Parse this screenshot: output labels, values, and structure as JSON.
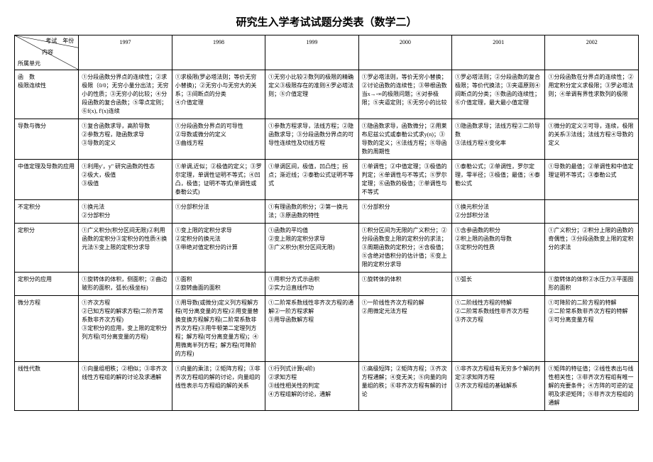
{
  "title": "研究生入学考试试题分类表（数学二）",
  "header": {
    "diag_top": "考试　年份",
    "diag_mid": "内容",
    "diag_bot": "所属单元",
    "years": [
      "1997",
      "1998",
      "1999",
      "2000",
      "2001",
      "2002"
    ]
  },
  "rows": [
    {
      "label": "函　数\n极限连续性",
      "cells": [
        "①分段函数分界点的连续性；②求极限（0/0；无穷小量分出法；无穷小的性质；③无穷小的比较；④分段函数的复合函数；⑤零点定则；⑥f(x), f'(x)连续",
        "①求极限(罗必塔法则；等价无穷小替换)；②无穷小与无穷大的关系；③间断点的分类\n④介值定理",
        "①无穷小比较②数列的极限的精确定义③极限存在的准则④罗必塔法则；⑤介值定理",
        "①罗必塔法则，等价无穷小替换；②讨论函数的连续性；③带根函数当x→-∞的极限问题；④对参极限；⑤夹逼定则；⑥无穷小的比较",
        "①罗必塔法则；②分段函数的复合极限；等价代换法；③夹逼原则④间断点的分类；⑤数函的连续性；⑥介值定理，最大最小值定理",
        "①分段函数在分界点的连续性；②用定积分定义求极限；③罗必塔法则；④单调有界性求数列的极限"
      ]
    },
    {
      "label": "导数与微分",
      "cells": [
        "①复合函数求导，高阶导数\n②参数方程，隐函数求导\n③导数的定义",
        "①分段函数分界点的可导性\n②导数或微分的定义\n③曲线方程",
        "①参数方程求导，法线方程；②隐函数求导；③分段函数分界点的可导性连续性及切线方程",
        "①隐函数求导，函数微分；②用莱布尼兹公式或泰勒公式求y(n)；③导数的定义；④法线方程；⑤导函数的周期性",
        "①隐函数求导；法线方程②二阶导数\n③法线方程④变化率",
        "①微分的定义②可导，连续，极限的关系③法线；法线方程④导数的定义"
      ]
    },
    {
      "label": "中值定理及导数的应用",
      "cells": [
        "①利用y'，y\" 研究函数的性态\n②极大，极值\n③极值",
        "①单调,近似；②极值的定义；③罗尔定理，单调性证明不等式；④凹凸，极值；证明不等式(单调性或泰勒公式)",
        "①单调区间，极值，凹凸性；拐点；渐近线；②泰勒公式证明不等式",
        "①单调性；②中值定理；③极值的判定；④单调性与不等式；⑤罗尔定理；⑥函数的极值；⑦单调性与不等式",
        "①泰勒公式；②单调性，罗尔定理，零半径；③极值；最值；④泰勒公式",
        "①导数的最值；②单调性和中值定理证明不等式；③泰勒公式"
      ]
    },
    {
      "label": "不定积分",
      "cells": [
        "①换元法\n②分部积分",
        "①分部积分法",
        "①有理函数的积分；②第一换元法；③原函数的特性",
        "①分部积分",
        "①换元积分法\n②分部积分法",
        ""
      ]
    },
    {
      "label": "定积分",
      "cells": [
        "①广义积分(积分区间无限)②利用函数的定积分③定积分的性质④换元法⑤变上限的定积分求导",
        "①变上限的定积分求导\n②定积分的换元法\n③带绝对值定积分的计算",
        "①函数的平均值\n②变上限的定积分求导\n③广义积分(积分区间无限)",
        "①积分区间为无限的广义积分；②分段函数变上限的定积分的求法；③周期函数的定积分；④含极值；⑤含绝对值积分的估计值；⑥变上限的定积分求导",
        "①含参函数的积分\n②积上限的函数的导数\n③定积分的性质",
        "①广义积分；②积分上限的函数的奇偶性；③分段函数变上限的定积分的求法"
      ]
    },
    {
      "label": "定积分的应用",
      "cells": [
        "①旋转体的体积，侧面积；②曲边玻形的面积，弧长(极坐标)",
        "①面积\n②旋转曲面的面积",
        "①用积分方式示函积\n②实力沿直线作功",
        "①旋转体的体积",
        "①弧长",
        "①旋转体的体积②水压力③平面图形的面积"
      ]
    },
    {
      "label": "微分方程",
      "cells": [
        "①齐次方程\n②已知方程的解求方程(二阶齐常系数非齐次方程)\n③定积分的应用，变上限的定积分列方程(可分离变量的方程)",
        "①用导数(或微分)定义列方程解方程(可分离变量的方程)②用变量替换变换方程解方程(二阶常系数非齐次方程)③用牛顿第二定理列方程；解方程(可分离变量方程)；④用微离半列方程；解方程(可降阶的方程)",
        "①二阶常系数线性非齐次方程的通解②一阶方程求解\n③用导函数解方程",
        "①一阶线性齐次方程的解\n②用微定元法方程",
        "①二阶线性方程的特解\n②二阶常系数线性非齐次方程\n③齐次方程",
        "①可降阶的二阶方程的特解\n②二阶常系数非齐次方程的特解\n③可分离变量方程"
      ]
    },
    {
      "label": "线性代数",
      "cells": [
        "①向量组相秩；②相似；③非齐次线性方程组的解的讨论及求通解",
        "①向量的乘法；②矩阵方程；③非齐次方程组的解的讨论，向量组的线性表示与方程组的解的关系",
        "①行列式计算(4阶)\n②求知方程\n③线性相关性的判定\n④方程组解的讨论，通解",
        "①高级短阵；②矩阵方程；③齐次方程通解；④变无关；⑤向量的向量组的秩；⑥非齐次方程有解的讨论",
        "①非齐次方程组有无穷多个解的判定②求知阵方程\n③齐次方程组的基础解系",
        "①矩阵的特征值；②线性表出与线性相关性；③非齐次方程组有唯一解的充要条件；④方阵的可逆的证明及求逆矩阵；⑤非齐次方程组的通解"
      ]
    }
  ]
}
